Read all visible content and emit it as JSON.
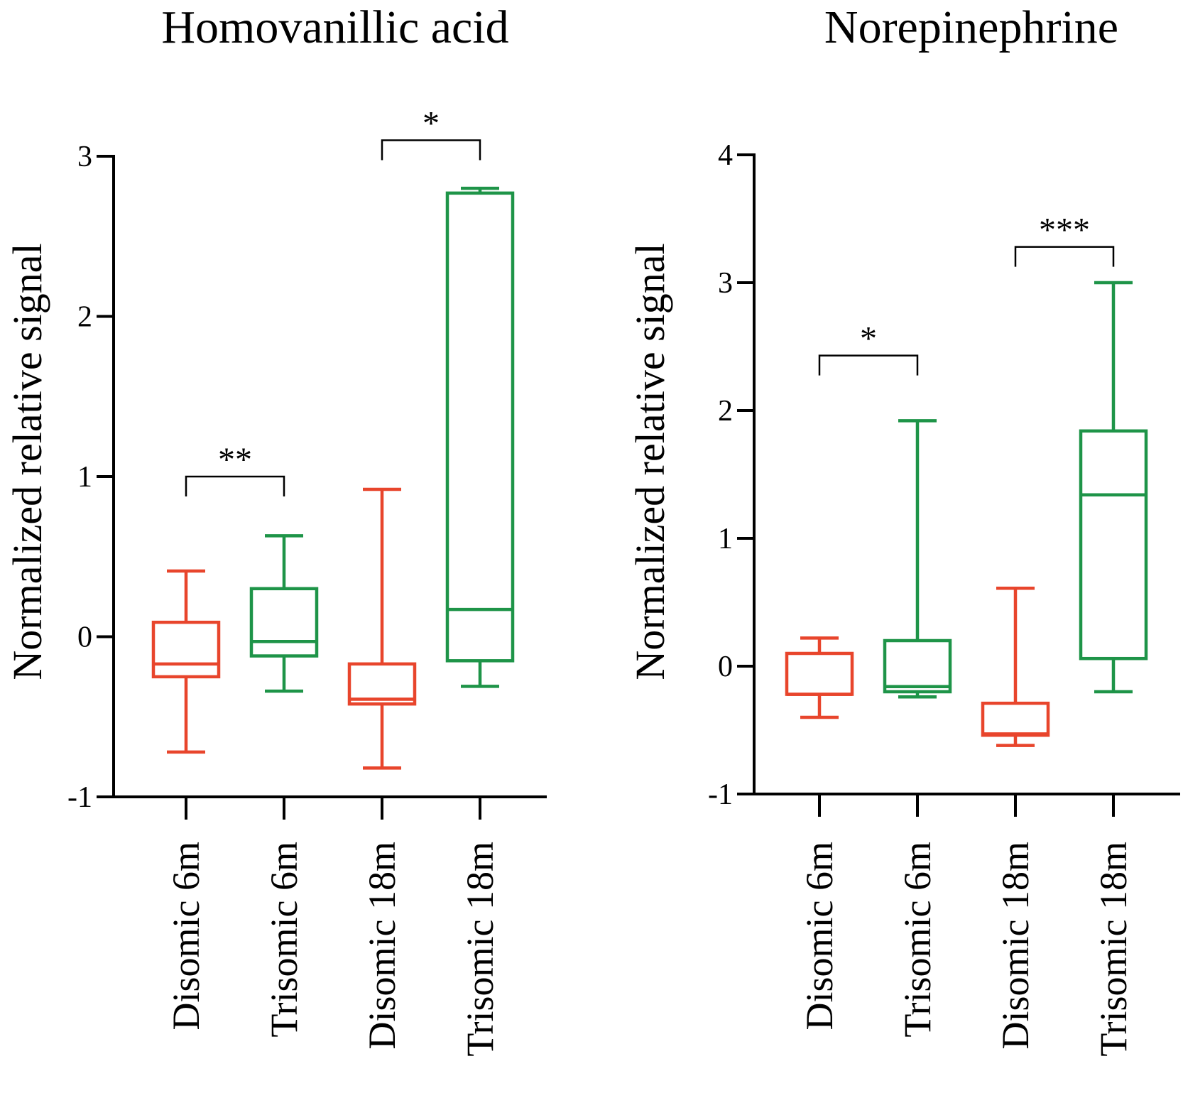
{
  "chart_data": [
    {
      "type": "box",
      "title": "Homovanillic acid",
      "xlabel": "",
      "ylabel": "Normalized relative signal",
      "ylim": [
        -1,
        3
      ],
      "yticks": [
        -1,
        0,
        1,
        2,
        3
      ],
      "categories": [
        "Disomic 6m",
        "Trisomic 6m",
        "Disomic 18m",
        "Trisomic 18m"
      ],
      "colors": [
        "#e8452c",
        "#1e9448",
        "#e8452c",
        "#1e9448"
      ],
      "boxes": [
        {
          "min": -0.72,
          "q1": -0.25,
          "median": -0.17,
          "q3": 0.09,
          "max": 0.41
        },
        {
          "min": -0.34,
          "q1": -0.12,
          "median": -0.03,
          "q3": 0.3,
          "max": 0.63
        },
        {
          "min": -0.82,
          "q1": -0.42,
          "median": -0.39,
          "q3": -0.17,
          "max": 0.92
        },
        {
          "min": -0.31,
          "q1": -0.15,
          "median": 0.17,
          "q3": 2.77,
          "max": 2.8
        }
      ],
      "significance": [
        {
          "from": 0,
          "to": 1,
          "label": "**",
          "level": 1.0
        },
        {
          "from": 2,
          "to": 3,
          "label": "*",
          "level": 3.1
        }
      ]
    },
    {
      "type": "box",
      "title": "Norepinephrine",
      "xlabel": "",
      "ylabel": "Normalized relative signal",
      "ylim": [
        -1,
        4
      ],
      "yticks": [
        -1,
        0,
        1,
        2,
        3,
        4
      ],
      "categories": [
        "Disomic 6m",
        "Trisomic 6m",
        "Disomic 18m",
        "Trisomic 18m"
      ],
      "colors": [
        "#e8452c",
        "#1e9448",
        "#e8452c",
        "#1e9448"
      ],
      "boxes": [
        {
          "min": -0.4,
          "q1": -0.22,
          "median": -0.22,
          "q3": 0.1,
          "max": 0.22
        },
        {
          "min": -0.24,
          "q1": -0.2,
          "median": -0.16,
          "q3": 0.2,
          "max": 1.92
        },
        {
          "min": -0.62,
          "q1": -0.54,
          "median": -0.53,
          "q3": -0.29,
          "max": 0.61
        },
        {
          "min": -0.2,
          "q1": 0.06,
          "median": 1.34,
          "q3": 1.84,
          "max": 3.0
        }
      ],
      "significance": [
        {
          "from": 0,
          "to": 1,
          "label": "*",
          "level": 2.43
        },
        {
          "from": 2,
          "to": 3,
          "label": "***",
          "level": 3.28
        }
      ]
    }
  ]
}
